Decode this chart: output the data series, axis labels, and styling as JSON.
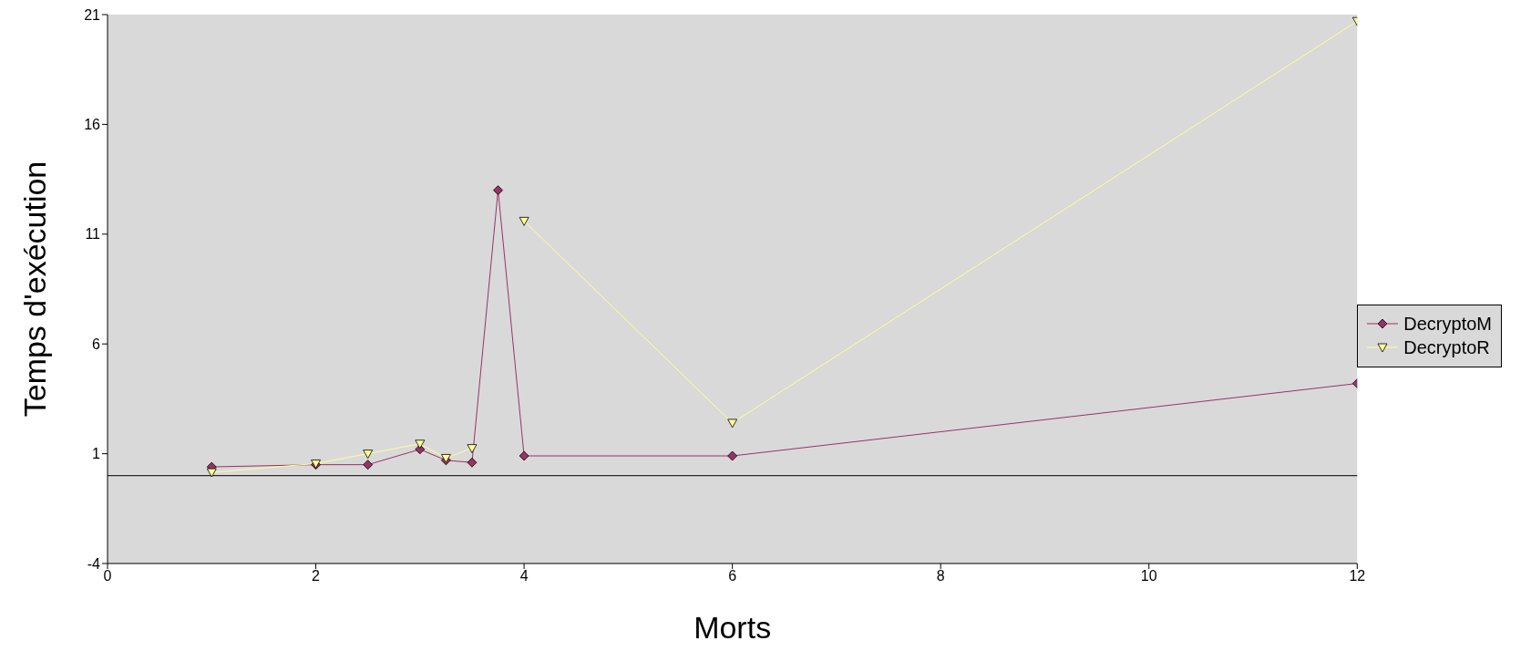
{
  "chart_data": {
    "type": "line",
    "xlabel": "Morts",
    "ylabel": "Temps d'exécution",
    "xlim": [
      0,
      12
    ],
    "xticks": [
      0,
      2,
      4,
      6,
      8,
      10,
      12
    ],
    "ylim": [
      -4,
      21
    ],
    "yticks": [
      -4,
      1,
      6,
      11,
      16,
      21
    ],
    "grid": false,
    "legend": "right",
    "ref_lines": [
      {
        "axis": "y",
        "value": 0,
        "color": "#000000"
      }
    ],
    "series": [
      {
        "name": "DecryptoM",
        "color": "#993366",
        "marker": "diamond",
        "x": [
          1,
          2,
          2.5,
          3,
          3.25,
          3.5,
          3.75,
          4,
          6,
          12
        ],
        "values": [
          0.4,
          0.5,
          0.5,
          1.2,
          0.7,
          0.6,
          13,
          0.9,
          0.9,
          4.2
        ]
      },
      {
        "name": "DecryptoR",
        "color": "#ffff99",
        "marker": "triangle",
        "x": [
          1,
          2,
          2.5,
          3,
          3.25,
          3.5,
          3.75,
          4,
          6,
          12
        ],
        "values": [
          0.15,
          0.55,
          1.0,
          1.45,
          0.8,
          1.25,
          null,
          11.6,
          2.4,
          20.7
        ]
      }
    ]
  }
}
